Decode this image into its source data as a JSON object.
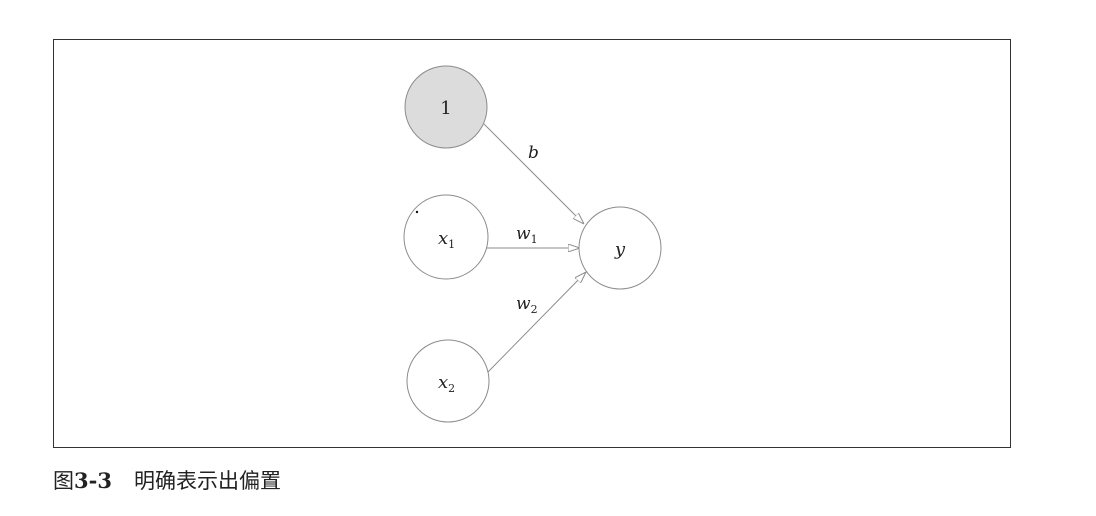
{
  "nodes": {
    "bias": {
      "label": "1"
    },
    "x1": {
      "label": "x",
      "sub": "1"
    },
    "x2": {
      "label": "x",
      "sub": "2"
    },
    "y": {
      "label": "y"
    }
  },
  "edges": {
    "bias_to_y": {
      "label": "b"
    },
    "x1_to_y": {
      "label": "w",
      "sub": "1"
    },
    "x2_to_y": {
      "label": "w",
      "sub": "2"
    }
  },
  "caption": {
    "prefix": "图",
    "number": "3-3",
    "title": "明确表示出偏置"
  },
  "colors": {
    "bias_fill": "#dcdcdc",
    "node_stroke": "#8c8c8c",
    "edge_stroke": "#8c8c8c",
    "frame": "#333333"
  }
}
